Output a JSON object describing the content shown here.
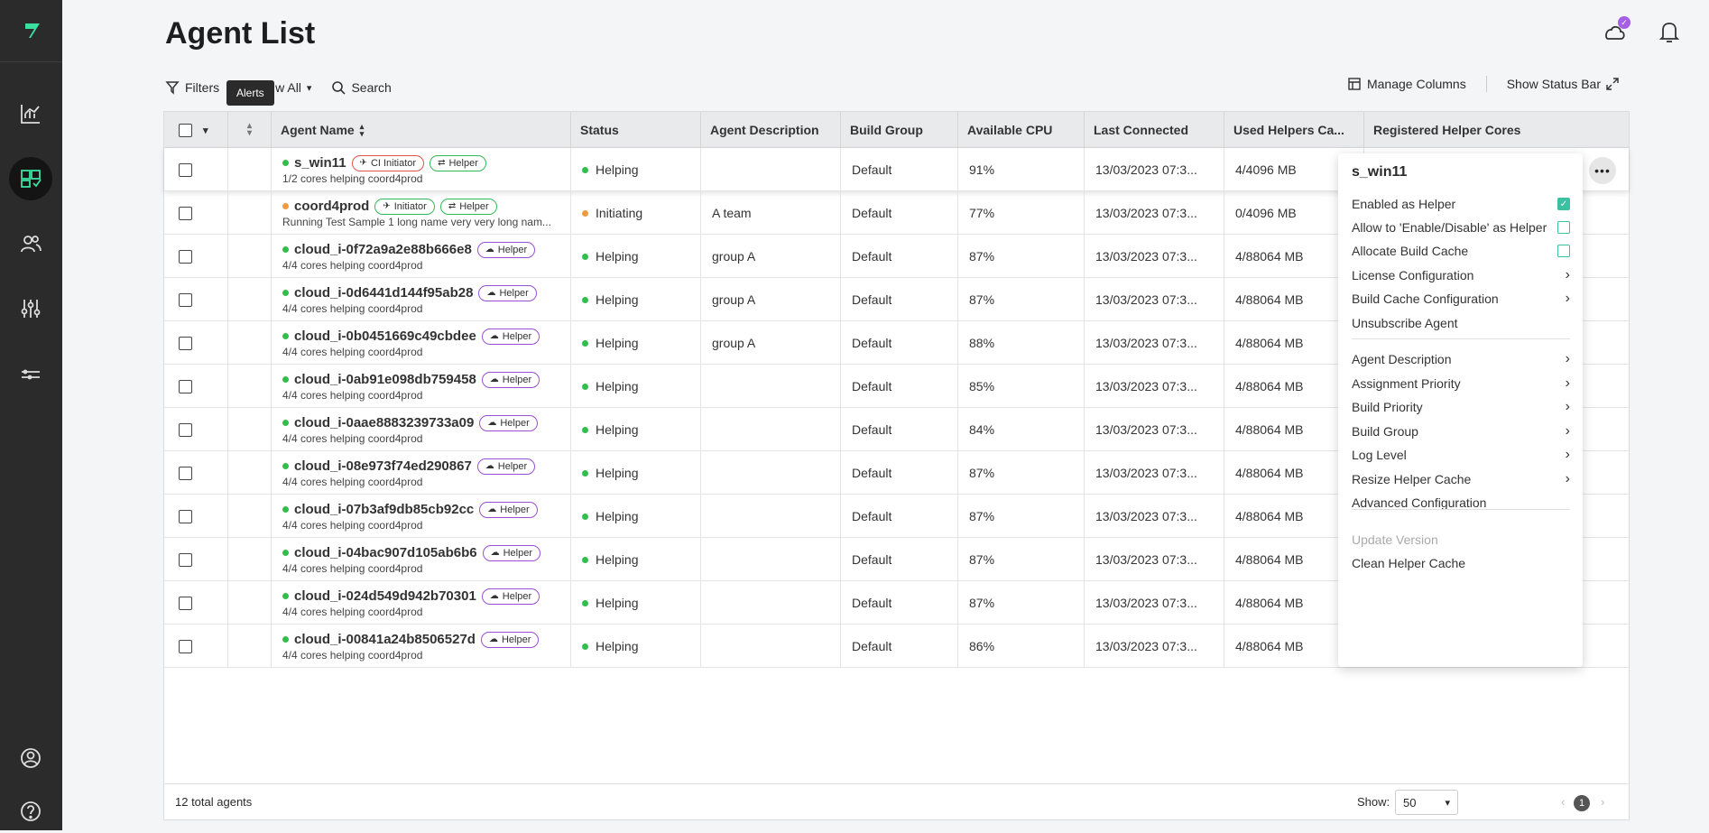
{
  "page": {
    "title": "Agent List"
  },
  "toolbar": {
    "filters_label": "Filters",
    "view_all_label": "w All",
    "search_label": "Search",
    "alerts_tooltip": "Alerts",
    "manage_columns_label": "Manage Columns",
    "show_status_bar_label": "Show Status Bar"
  },
  "table": {
    "headers": [
      "Agent Name",
      "Status",
      "Agent Description",
      "Build Group",
      "Available CPU",
      "Last Connected",
      "Used Helpers Ca...",
      "Registered Helper Cores"
    ],
    "rows": [
      {
        "name": "s_win11",
        "badges": [
          "CI Initiator",
          "Helper"
        ],
        "sub": "1/2 cores helping coord4prod",
        "status": "Helping",
        "desc": "",
        "group": "Default",
        "cpu": "91%",
        "last": "13/03/2023 07:3...",
        "used": "4/4096 MB"
      },
      {
        "name": "coord4prod",
        "badges": [
          "Initiator",
          "Helper"
        ],
        "sub": "Running Test Sample 1 long name very very long nam...",
        "status": "Initiating",
        "desc": "A team",
        "group": "Default",
        "cpu": "77%",
        "last": "13/03/2023 07:3...",
        "used": "0/4096 MB"
      },
      {
        "name": "cloud_i-0f72a9a2e88b666e8",
        "badges": [
          "Helper"
        ],
        "sub": "4/4 cores helping coord4prod",
        "status": "Helping",
        "desc": "group A",
        "group": "Default",
        "cpu": "87%",
        "last": "13/03/2023 07:3...",
        "used": "4/88064 MB"
      },
      {
        "name": "cloud_i-0d6441d144f95ab28",
        "badges": [
          "Helper"
        ],
        "sub": "4/4 cores helping coord4prod",
        "status": "Helping",
        "desc": "group A",
        "group": "Default",
        "cpu": "87%",
        "last": "13/03/2023 07:3...",
        "used": "4/88064 MB"
      },
      {
        "name": "cloud_i-0b0451669c49cbdee",
        "badges": [
          "Helper"
        ],
        "sub": "4/4 cores helping coord4prod",
        "status": "Helping",
        "desc": "group A",
        "group": "Default",
        "cpu": "88%",
        "last": "13/03/2023 07:3...",
        "used": "4/88064 MB"
      },
      {
        "name": "cloud_i-0ab91e098db759458",
        "badges": [
          "Helper"
        ],
        "sub": "4/4 cores helping coord4prod",
        "status": "Helping",
        "desc": "",
        "group": "Default",
        "cpu": "85%",
        "last": "13/03/2023 07:3...",
        "used": "4/88064 MB"
      },
      {
        "name": "cloud_i-0aae8883239733a09",
        "badges": [
          "Helper"
        ],
        "sub": "4/4 cores helping coord4prod",
        "status": "Helping",
        "desc": "",
        "group": "Default",
        "cpu": "84%",
        "last": "13/03/2023 07:3...",
        "used": "4/88064 MB"
      },
      {
        "name": "cloud_i-08e973f74ed290867",
        "badges": [
          "Helper"
        ],
        "sub": "4/4 cores helping coord4prod",
        "status": "Helping",
        "desc": "",
        "group": "Default",
        "cpu": "87%",
        "last": "13/03/2023 07:3...",
        "used": "4/88064 MB"
      },
      {
        "name": "cloud_i-07b3af9db85cb92cc",
        "badges": [
          "Helper"
        ],
        "sub": "4/4 cores helping coord4prod",
        "status": "Helping",
        "desc": "",
        "group": "Default",
        "cpu": "87%",
        "last": "13/03/2023 07:3...",
        "used": "4/88064 MB"
      },
      {
        "name": "cloud_i-04bac907d105ab6b6",
        "badges": [
          "Helper"
        ],
        "sub": "4/4 cores helping coord4prod",
        "status": "Helping",
        "desc": "",
        "group": "Default",
        "cpu": "87%",
        "last": "13/03/2023 07:3...",
        "used": "4/88064 MB"
      },
      {
        "name": "cloud_i-024d549d942b70301",
        "badges": [
          "Helper"
        ],
        "sub": "4/4 cores helping coord4prod",
        "status": "Helping",
        "desc": "",
        "group": "Default",
        "cpu": "87%",
        "last": "13/03/2023 07:3...",
        "used": "4/88064 MB"
      },
      {
        "name": "cloud_i-00841a24b8506527d",
        "badges": [
          "Helper"
        ],
        "sub": "4/4 cores helping coord4prod",
        "status": "Helping",
        "desc": "",
        "group": "Default",
        "cpu": "86%",
        "last": "13/03/2023 07:3...",
        "used": "4/88064 MB"
      }
    ]
  },
  "footer": {
    "total_label": "12 total agents",
    "show_label": "Show:",
    "page_size": "50",
    "current_page": "1"
  },
  "context_menu": {
    "title": "s_win11",
    "items": [
      {
        "label": "Enabled as Helper",
        "kind": "checkbox",
        "checked": true
      },
      {
        "label": "Allow to 'Enable/Disable' as Helper",
        "kind": "checkbox",
        "checked": false
      },
      {
        "label": "Allocate Build Cache",
        "kind": "checkbox",
        "checked": false
      },
      {
        "label": "License Configuration",
        "kind": "submenu"
      },
      {
        "label": "Build Cache Configuration",
        "kind": "submenu"
      },
      {
        "label": "Unsubscribe Agent",
        "kind": "action"
      },
      {
        "label": "Agent Description",
        "kind": "submenu"
      },
      {
        "label": "Assignment Priority",
        "kind": "submenu"
      },
      {
        "label": "Build Priority",
        "kind": "submenu"
      },
      {
        "label": "Build Group",
        "kind": "submenu"
      },
      {
        "label": "Log Level",
        "kind": "submenu"
      },
      {
        "label": "Resize Helper Cache",
        "kind": "submenu"
      },
      {
        "label": "Advanced Configuration",
        "kind": "action"
      },
      {
        "label": "Update Version",
        "kind": "disabled"
      },
      {
        "label": "Clean Helper Cache",
        "kind": "action"
      }
    ]
  },
  "colors": {
    "sidebar": "#2b2b2b",
    "accent": "#3cc0a2",
    "helping": "#2fbf4a",
    "initiating": "#f09a3e"
  },
  "icons": [
    "logo-icon",
    "analytics-icon",
    "agents-icon",
    "users-icon",
    "settings-sliders-icon",
    "keys-icon",
    "account-icon",
    "help-icon",
    "cloud-icon",
    "bell-icon",
    "filter-icon",
    "search-icon",
    "manage-columns-icon",
    "expand-icon"
  ]
}
